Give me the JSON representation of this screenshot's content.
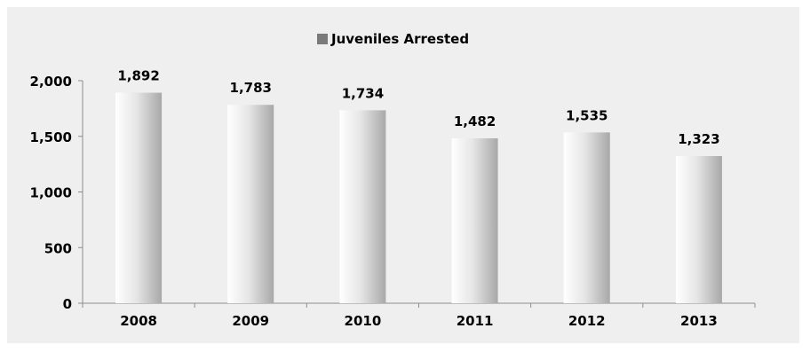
{
  "chart_data": {
    "type": "bar",
    "categories": [
      "2008",
      "2009",
      "2010",
      "2011",
      "2012",
      "2013"
    ],
    "series": [
      {
        "name": "Juveniles Arrested",
        "values": [
          1892,
          1783,
          1734,
          1482,
          1535,
          1323
        ]
      }
    ],
    "data_labels": [
      "1,892",
      "1,783",
      "1,734",
      "1,482",
      "1,535",
      "1,323"
    ],
    "y_ticks": [
      0,
      500,
      1000,
      1500,
      2000
    ],
    "y_tick_labels": [
      "0",
      "500",
      "1,000",
      "1,500",
      "2,000"
    ],
    "ylim": [
      0,
      2000
    ],
    "legend_position": "top-center",
    "grid": false,
    "colors": {
      "background": "#efefef",
      "bar_light": "#ffffff",
      "bar_dark": "#a8a8a8",
      "legend_swatch": "#7a7a7a",
      "axis": "#8c8c8c"
    }
  }
}
